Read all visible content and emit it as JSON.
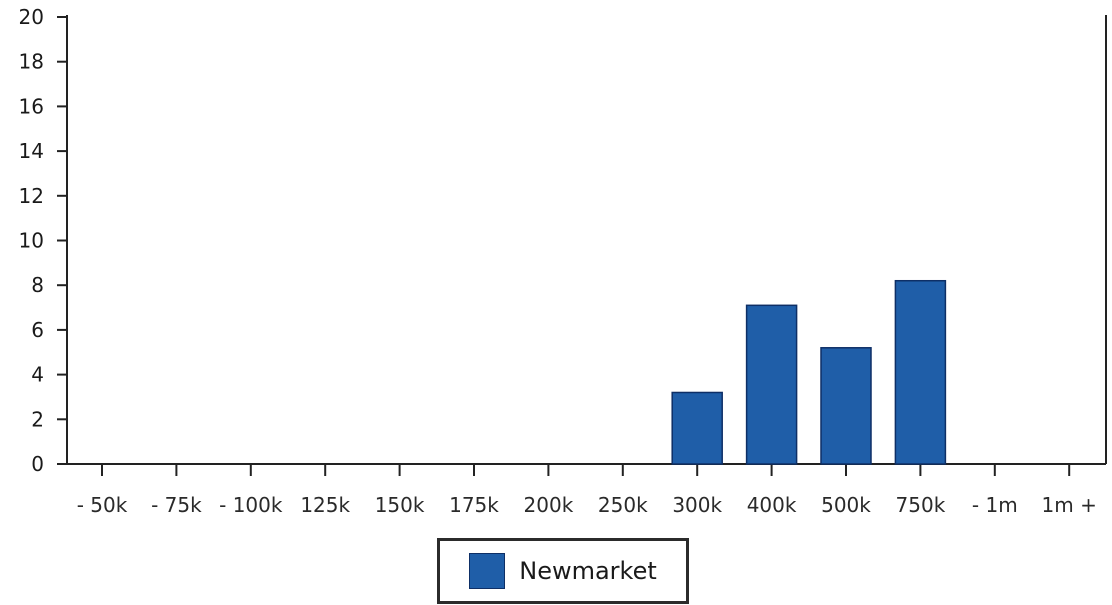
{
  "chart_data": {
    "type": "bar",
    "categories": [
      "- 50k",
      "- 75k",
      "- 100k",
      "125k",
      "150k",
      "175k",
      "200k",
      "250k",
      "300k",
      "400k",
      "500k",
      "750k",
      "- 1m",
      "1m +"
    ],
    "series": [
      {
        "name": "Newmarket",
        "values": [
          0,
          0,
          0,
          0,
          0,
          0,
          0,
          0,
          3.2,
          7.1,
          5.2,
          8.2,
          0,
          0
        ]
      }
    ],
    "ylim": [
      0,
      20
    ],
    "yticks": [
      0,
      2,
      4,
      6,
      8,
      10,
      12,
      14,
      16,
      18,
      20
    ],
    "grid": false,
    "legend": {
      "position": "bottom-center"
    },
    "colors": {
      "bar": "#1f5ea8",
      "bar_edge": "#0e2f66",
      "axis": "#222222"
    }
  }
}
